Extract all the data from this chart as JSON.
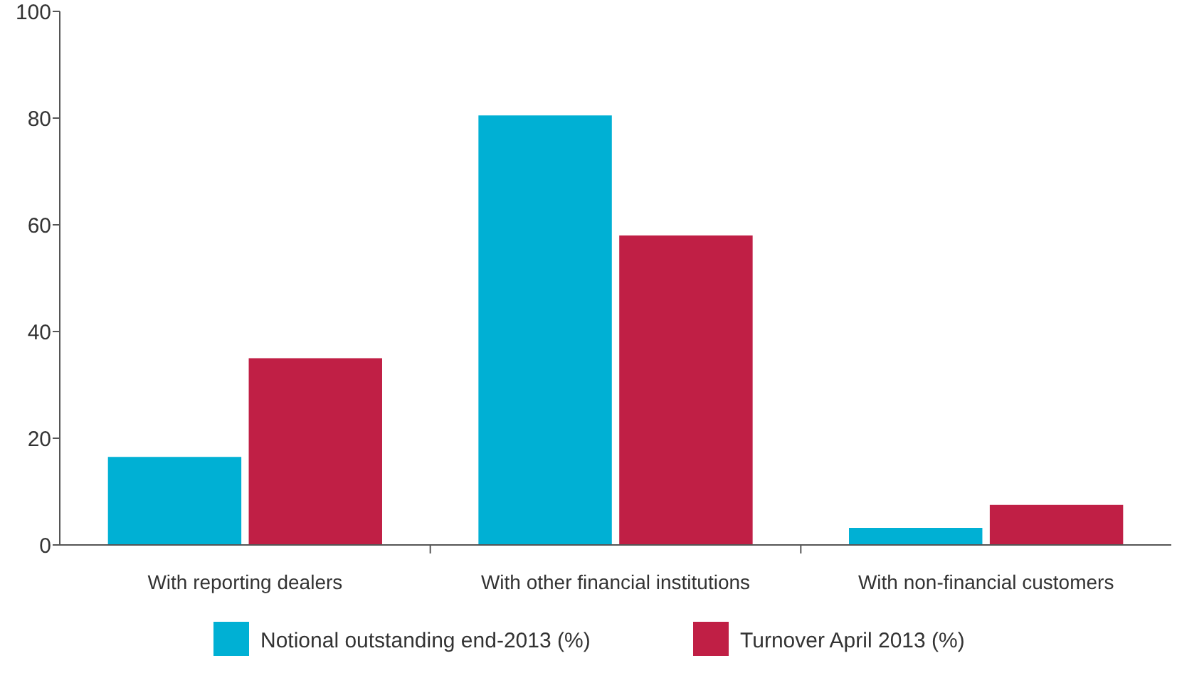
{
  "chart_data": {
    "type": "bar",
    "categories": [
      "With reporting dealers",
      "With other financial institutions",
      "With non-financial customers"
    ],
    "series": [
      {
        "name": "Notional outstanding end-2013 (%)",
        "color": "#00b0d4",
        "values": [
          16.5,
          80.5,
          3.2
        ]
      },
      {
        "name": "Turnover April 2013 (%)",
        "color": "#c01f45",
        "values": [
          35,
          58,
          7.5
        ]
      }
    ],
    "ylim": [
      0,
      100
    ],
    "yticks": [
      0,
      20,
      40,
      60,
      80,
      100
    ],
    "grid": false,
    "legend": "bottom"
  }
}
